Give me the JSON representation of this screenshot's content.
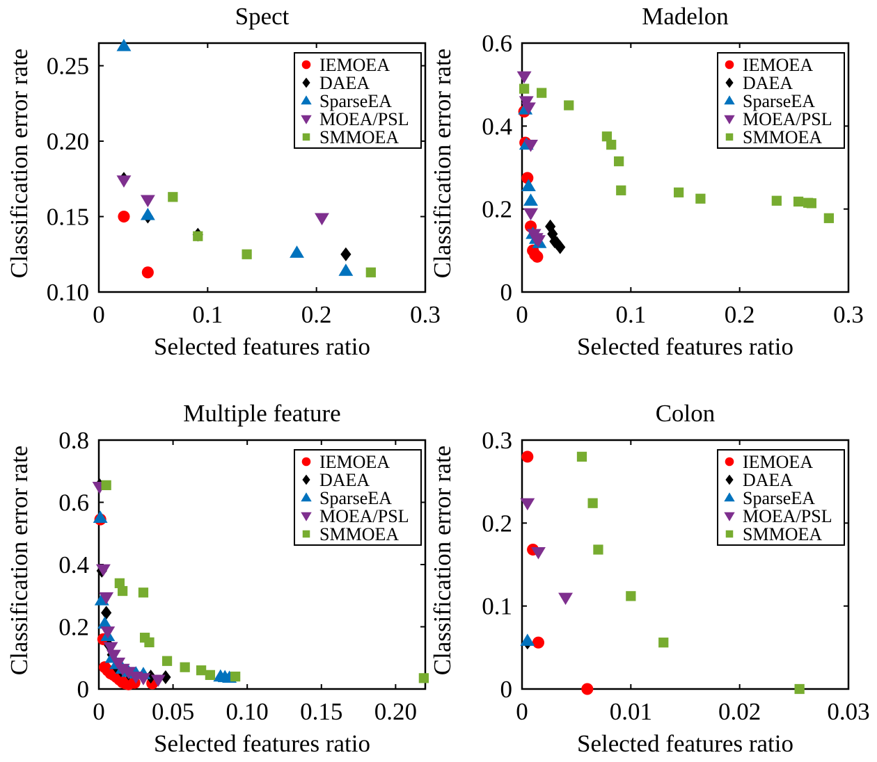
{
  "colors": {
    "IEMOEA": "#ff0000",
    "DAEA": "#000000",
    "SparseEA": "#0072bd",
    "MOEA/PSL": "#7e2f8e",
    "SMMOEA": "#77ac30"
  },
  "markers": {
    "IEMOEA": "circle",
    "DAEA": "diamond",
    "SparseEA": "triangle-up",
    "MOEA/PSL": "triangle-down",
    "SMMOEA": "square"
  },
  "chart_data": [
    {
      "type": "scatter",
      "title": "Spect",
      "xlabel": "Selected features ratio",
      "ylabel": "Classification error rate",
      "xlim": [
        0,
        0.3
      ],
      "ylim": [
        0.1,
        0.265
      ],
      "xticks": [
        0,
        0.1,
        0.2,
        0.3
      ],
      "xtick_labels": [
        "0",
        "0.1",
        "0.2",
        "0.3"
      ],
      "yticks": [
        0.1,
        0.15,
        0.2,
        0.25
      ],
      "ytick_labels": [
        "0.10",
        "0.15",
        "0.20",
        "0.25"
      ],
      "legend_position": "top-right",
      "series": [
        {
          "name": "IEMOEA",
          "points": [
            [
              0.023,
              0.15
            ],
            [
              0.045,
              0.113
            ]
          ]
        },
        {
          "name": "DAEA",
          "points": [
            [
              0.023,
              0.175
            ],
            [
              0.045,
              0.15
            ],
            [
              0.091,
              0.138
            ],
            [
              0.227,
              0.125
            ]
          ]
        },
        {
          "name": "SparseEA",
          "points": [
            [
              0.023,
              0.263
            ],
            [
              0.045,
              0.151
            ],
            [
              0.182,
              0.126
            ],
            [
              0.227,
              0.114
            ]
          ]
        },
        {
          "name": "MOEA/PSL",
          "points": [
            [
              0.023,
              0.174
            ],
            [
              0.045,
              0.161
            ],
            [
              0.205,
              0.149
            ]
          ]
        },
        {
          "name": "SMMOEA",
          "points": [
            [
              0.068,
              0.163
            ],
            [
              0.091,
              0.137
            ],
            [
              0.136,
              0.125
            ],
            [
              0.25,
              0.113
            ]
          ]
        }
      ]
    },
    {
      "type": "scatter",
      "title": "Madelon",
      "xlabel": "Selected features ratio",
      "ylabel": "Classification error rate",
      "xlim": [
        0,
        0.3
      ],
      "ylim": [
        0,
        0.6
      ],
      "xticks": [
        0,
        0.1,
        0.2,
        0.3
      ],
      "xtick_labels": [
        "0",
        "0.1",
        "0.2",
        "0.3"
      ],
      "yticks": [
        0,
        0.2,
        0.4,
        0.6
      ],
      "ytick_labels": [
        "0",
        "0.2",
        "0.4",
        "0.6"
      ],
      "legend_position": "top-right",
      "series": [
        {
          "name": "IEMOEA",
          "points": [
            [
              0.002,
              0.435
            ],
            [
              0.003,
              0.36
            ],
            [
              0.005,
              0.275
            ],
            [
              0.008,
              0.158
            ],
            [
              0.01,
              0.1
            ],
            [
              0.012,
              0.09
            ],
            [
              0.014,
              0.085
            ]
          ]
        },
        {
          "name": "DAEA",
          "points": [
            [
              0.026,
              0.158
            ],
            [
              0.028,
              0.14
            ],
            [
              0.03,
              0.122
            ],
            [
              0.032,
              0.118
            ],
            [
              0.035,
              0.108
            ]
          ]
        },
        {
          "name": "SparseEA",
          "points": [
            [
              0.003,
              0.44
            ],
            [
              0.004,
              0.355
            ],
            [
              0.006,
              0.255
            ],
            [
              0.008,
              0.22
            ],
            [
              0.01,
              0.14
            ],
            [
              0.013,
              0.128
            ],
            [
              0.016,
              0.118
            ]
          ]
        },
        {
          "name": "MOEA/PSL",
          "points": [
            [
              0.002,
              0.52
            ],
            [
              0.004,
              0.46
            ],
            [
              0.006,
              0.445
            ],
            [
              0.008,
              0.355
            ],
            [
              0.008,
              0.19
            ],
            [
              0.011,
              0.14
            ],
            [
              0.013,
              0.13
            ],
            [
              0.015,
              0.125
            ]
          ]
        },
        {
          "name": "SMMOEA",
          "points": [
            [
              0.002,
              0.49
            ],
            [
              0.018,
              0.48
            ],
            [
              0.043,
              0.45
            ],
            [
              0.078,
              0.375
            ],
            [
              0.082,
              0.355
            ],
            [
              0.089,
              0.315
            ],
            [
              0.091,
              0.245
            ],
            [
              0.144,
              0.24
            ],
            [
              0.164,
              0.225
            ],
            [
              0.234,
              0.22
            ],
            [
              0.254,
              0.218
            ],
            [
              0.263,
              0.215
            ],
            [
              0.266,
              0.214
            ],
            [
              0.282,
              0.178
            ]
          ]
        }
      ]
    },
    {
      "type": "scatter",
      "title": "Multiple feature",
      "xlabel": "Selected features ratio",
      "ylabel": "Classification error rate",
      "xlim": [
        0,
        0.22
      ],
      "ylim": [
        0,
        0.8
      ],
      "xticks": [
        0,
        0.05,
        0.1,
        0.15,
        0.2
      ],
      "xtick_labels": [
        "0",
        "0.05",
        "0.10",
        "0.15",
        "0.20"
      ],
      "yticks": [
        0,
        0.2,
        0.4,
        0.6,
        0.8
      ],
      "ytick_labels": [
        "0",
        "0.2",
        "0.4",
        "0.6",
        "0.8"
      ],
      "legend_position": "top-right",
      "series": [
        {
          "name": "IEMOEA",
          "points": [
            [
              0.001,
              0.545
            ],
            [
              0.003,
              0.16
            ],
            [
              0.004,
              0.07
            ],
            [
              0.006,
              0.06
            ],
            [
              0.008,
              0.05
            ],
            [
              0.01,
              0.045
            ],
            [
              0.012,
              0.038
            ],
            [
              0.014,
              0.03
            ],
            [
              0.016,
              0.022
            ],
            [
              0.018,
              0.018
            ],
            [
              0.02,
              0.015
            ],
            [
              0.024,
              0.02
            ],
            [
              0.036,
              0.018
            ]
          ]
        },
        {
          "name": "DAEA",
          "points": [
            [
              0.0005,
              0.655
            ],
            [
              0.002,
              0.38
            ],
            [
              0.005,
              0.245
            ],
            [
              0.007,
              0.14
            ],
            [
              0.009,
              0.11
            ],
            [
              0.012,
              0.07
            ],
            [
              0.015,
              0.06
            ],
            [
              0.02,
              0.05
            ],
            [
              0.025,
              0.045
            ],
            [
              0.035,
              0.04
            ],
            [
              0.045,
              0.038
            ]
          ]
        },
        {
          "name": "SparseEA",
          "points": [
            [
              0.001,
              0.55
            ],
            [
              0.002,
              0.285
            ],
            [
              0.004,
              0.21
            ],
            [
              0.006,
              0.17
            ],
            [
              0.009,
              0.1
            ],
            [
              0.012,
              0.08
            ],
            [
              0.016,
              0.065
            ],
            [
              0.02,
              0.055
            ],
            [
              0.025,
              0.05
            ],
            [
              0.03,
              0.048
            ],
            [
              0.082,
              0.04
            ],
            [
              0.085,
              0.038
            ],
            [
              0.088,
              0.036
            ]
          ]
        },
        {
          "name": "MOEA/PSL",
          "points": [
            [
              0.0005,
              0.65
            ],
            [
              0.003,
              0.385
            ],
            [
              0.005,
              0.295
            ],
            [
              0.006,
              0.185
            ],
            [
              0.008,
              0.135
            ],
            [
              0.01,
              0.11
            ],
            [
              0.013,
              0.085
            ],
            [
              0.016,
              0.065
            ],
            [
              0.02,
              0.055
            ],
            [
              0.025,
              0.04
            ],
            [
              0.03,
              0.035
            ],
            [
              0.04,
              0.03
            ]
          ]
        },
        {
          "name": "SMMOEA",
          "points": [
            [
              0.005,
              0.655
            ],
            [
              0.014,
              0.34
            ],
            [
              0.016,
              0.315
            ],
            [
              0.03,
              0.31
            ],
            [
              0.031,
              0.165
            ],
            [
              0.034,
              0.15
            ],
            [
              0.046,
              0.09
            ],
            [
              0.058,
              0.07
            ],
            [
              0.069,
              0.06
            ],
            [
              0.075,
              0.045
            ],
            [
              0.092,
              0.04
            ],
            [
              0.219,
              0.035
            ]
          ]
        }
      ]
    },
    {
      "type": "scatter",
      "title": "Colon",
      "xlabel": "Selected features ratio",
      "ylabel": "Classification error rate",
      "xlim": [
        0,
        0.03
      ],
      "ylim": [
        0,
        0.3
      ],
      "xticks": [
        0,
        0.01,
        0.02,
        0.03
      ],
      "xtick_labels": [
        "0",
        "0.01",
        "0.02",
        "0.03"
      ],
      "yticks": [
        0,
        0.1,
        0.2,
        0.3
      ],
      "ytick_labels": [
        "0",
        "0.1",
        "0.2",
        "0.3"
      ],
      "legend_position": "top-right",
      "series": [
        {
          "name": "IEMOEA",
          "points": [
            [
              0.0005,
              0.28
            ],
            [
              0.001,
              0.168
            ],
            [
              0.0015,
              0.056
            ],
            [
              0.006,
              0.0
            ]
          ]
        },
        {
          "name": "DAEA",
          "points": [
            [
              0.0005,
              0.056
            ]
          ]
        },
        {
          "name": "SparseEA",
          "points": [
            [
              0.0005,
              0.058
            ]
          ]
        },
        {
          "name": "MOEA/PSL",
          "points": [
            [
              0.0005,
              0.224
            ],
            [
              0.0015,
              0.165
            ],
            [
              0.004,
              0.11
            ]
          ]
        },
        {
          "name": "SMMOEA",
          "points": [
            [
              0.0055,
              0.28
            ],
            [
              0.0065,
              0.224
            ],
            [
              0.007,
              0.168
            ],
            [
              0.01,
              0.112
            ],
            [
              0.013,
              0.056
            ],
            [
              0.0255,
              0.0
            ]
          ]
        }
      ]
    }
  ]
}
